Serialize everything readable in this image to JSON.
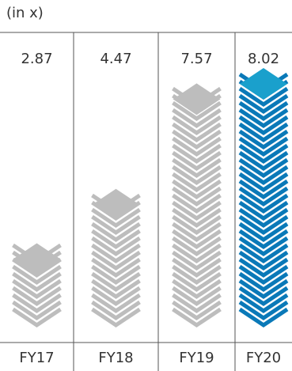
{
  "chart_data": {
    "type": "bar",
    "unit_label": "(in x)",
    "categories": [
      "FY17",
      "FY18",
      "FY19",
      "FY20"
    ],
    "values": [
      2.87,
      4.47,
      7.57,
      8.02
    ],
    "value_labels": [
      "2.87",
      "4.47",
      "7.57",
      "8.02"
    ],
    "ylim": [
      0,
      8.02
    ],
    "grid": false,
    "colors": {
      "default_bar": "#bdbdbd",
      "highlight_bar": "#0a79b8",
      "highlight_top": "#1aa0cc",
      "highlight_index": 3,
      "rule": "#555555"
    }
  }
}
